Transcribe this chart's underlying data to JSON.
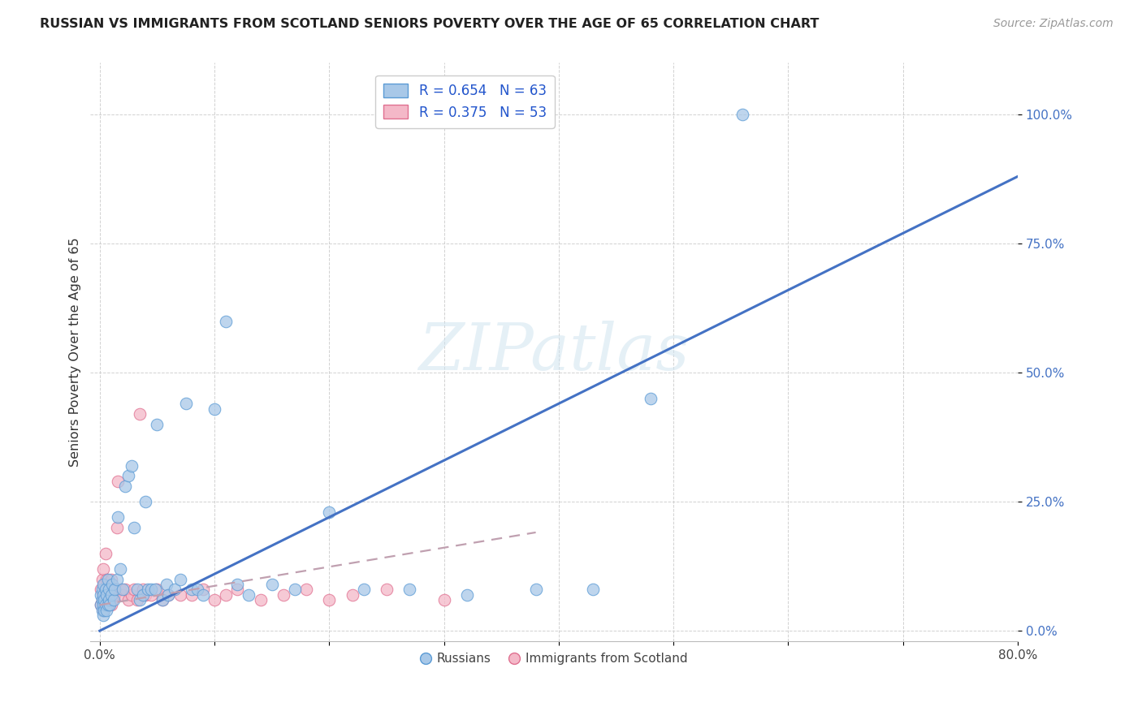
{
  "title": "RUSSIAN VS IMMIGRANTS FROM SCOTLAND SENIORS POVERTY OVER THE AGE OF 65 CORRELATION CHART",
  "source": "Source: ZipAtlas.com",
  "ylabel": "Seniors Poverty Over the Age of 65",
  "xlim": [
    0.0,
    0.8
  ],
  "ylim": [
    0.0,
    1.1
  ],
  "yticks": [
    0.0,
    0.25,
    0.5,
    0.75,
    1.0
  ],
  "ytick_labels": [
    "0.0%",
    "25.0%",
    "50.0%",
    "75.0%",
    "100.0%"
  ],
  "xticks": [
    0.0,
    0.1,
    0.2,
    0.3,
    0.4,
    0.5,
    0.6,
    0.7,
    0.8
  ],
  "xtick_labels": [
    "0.0%",
    "",
    "",
    "",
    "",
    "",
    "",
    "",
    "80.0%"
  ],
  "legend_r_russian": "R = 0.654",
  "legend_n_russian": "N = 63",
  "legend_r_scotland": "R = 0.375",
  "legend_n_scotland": "N = 53",
  "watermark": "ZIPatlas",
  "russian_face_color": "#a8c8e8",
  "russian_edge_color": "#5b9bd5",
  "scotland_face_color": "#f4b8c8",
  "scotland_edge_color": "#e07090",
  "russian_line_color": "#4472c4",
  "scotland_line_color": "#c0a0b0",
  "russians_x": [
    0.001,
    0.001,
    0.002,
    0.002,
    0.002,
    0.003,
    0.003,
    0.003,
    0.003,
    0.004,
    0.004,
    0.005,
    0.005,
    0.006,
    0.006,
    0.007,
    0.007,
    0.008,
    0.008,
    0.009,
    0.01,
    0.011,
    0.012,
    0.013,
    0.015,
    0.016,
    0.018,
    0.02,
    0.022,
    0.025,
    0.028,
    0.03,
    0.033,
    0.035,
    0.038,
    0.04,
    0.042,
    0.045,
    0.048,
    0.05,
    0.055,
    0.058,
    0.06,
    0.065,
    0.07,
    0.075,
    0.08,
    0.085,
    0.09,
    0.1,
    0.11,
    0.12,
    0.13,
    0.15,
    0.17,
    0.2,
    0.23,
    0.27,
    0.32,
    0.38,
    0.43,
    0.48,
    0.56
  ],
  "russians_y": [
    0.05,
    0.07,
    0.04,
    0.06,
    0.08,
    0.03,
    0.05,
    0.07,
    0.09,
    0.04,
    0.06,
    0.05,
    0.08,
    0.04,
    0.07,
    0.05,
    0.1,
    0.06,
    0.08,
    0.05,
    0.07,
    0.09,
    0.06,
    0.08,
    0.1,
    0.22,
    0.12,
    0.08,
    0.28,
    0.3,
    0.32,
    0.2,
    0.08,
    0.06,
    0.07,
    0.25,
    0.08,
    0.08,
    0.08,
    0.4,
    0.06,
    0.09,
    0.07,
    0.08,
    0.1,
    0.44,
    0.08,
    0.08,
    0.07,
    0.43,
    0.6,
    0.09,
    0.07,
    0.09,
    0.08,
    0.23,
    0.08,
    0.08,
    0.07,
    0.08,
    0.08,
    0.45,
    1.0
  ],
  "scotland_x": [
    0.001,
    0.001,
    0.002,
    0.002,
    0.003,
    0.003,
    0.003,
    0.004,
    0.004,
    0.005,
    0.005,
    0.005,
    0.006,
    0.006,
    0.007,
    0.007,
    0.008,
    0.008,
    0.009,
    0.01,
    0.01,
    0.011,
    0.012,
    0.013,
    0.015,
    0.016,
    0.018,
    0.02,
    0.022,
    0.025,
    0.028,
    0.03,
    0.033,
    0.035,
    0.038,
    0.04,
    0.045,
    0.05,
    0.055,
    0.06,
    0.07,
    0.08,
    0.09,
    0.1,
    0.11,
    0.12,
    0.14,
    0.16,
    0.18,
    0.2,
    0.22,
    0.25,
    0.3
  ],
  "scotland_y": [
    0.05,
    0.08,
    0.06,
    0.1,
    0.04,
    0.07,
    0.12,
    0.05,
    0.09,
    0.06,
    0.08,
    0.15,
    0.05,
    0.1,
    0.06,
    0.08,
    0.05,
    0.07,
    0.06,
    0.05,
    0.1,
    0.06,
    0.08,
    0.07,
    0.2,
    0.29,
    0.08,
    0.07,
    0.08,
    0.06,
    0.07,
    0.08,
    0.06,
    0.42,
    0.08,
    0.07,
    0.07,
    0.08,
    0.06,
    0.07,
    0.07,
    0.07,
    0.08,
    0.06,
    0.07,
    0.08,
    0.06,
    0.07,
    0.08,
    0.06,
    0.07,
    0.08,
    0.06
  ]
}
